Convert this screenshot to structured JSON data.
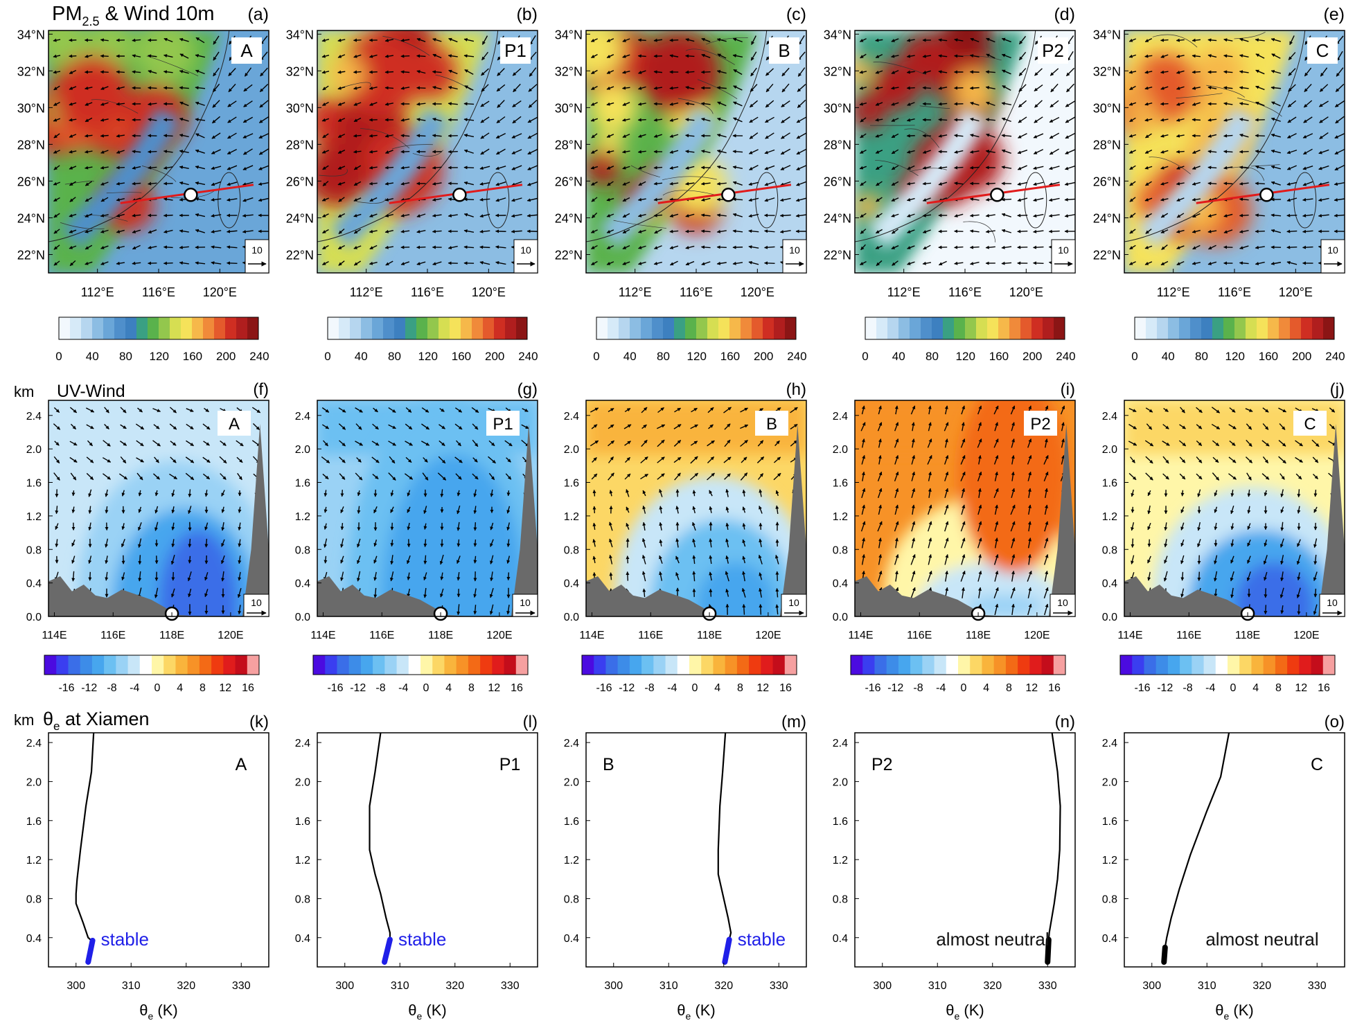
{
  "figure": {
    "row1_title": "PM",
    "row1_title_sub": "2.5",
    "row1_title_rest": " & Wind 10m",
    "row2_title": "UV-Wind",
    "row3_title_sym": "θ",
    "row3_title_sub": "e",
    "row3_title_rest": " at Xiamen",
    "km_label": "km"
  },
  "colors": {
    "pm_scale": [
      "#f2f8fd",
      "#d6eaf8",
      "#b6d6ef",
      "#8cbde3",
      "#6aa6d8",
      "#4f8fcb",
      "#3d80c0",
      "#3aa083",
      "#5ab24c",
      "#93c74d",
      "#d6de52",
      "#f5e25a",
      "#f6b84a",
      "#f08a3a",
      "#e45a2c",
      "#cf2e22",
      "#b01e1e",
      "#8b1515"
    ],
    "uv_scale": [
      "#4b0be0",
      "#3a3ef0",
      "#3a6ee8",
      "#3d8ce8",
      "#47a6ee",
      "#6cc0f2",
      "#9ad2f5",
      "#c8e6f8",
      "#ffffff",
      "#fff6a8",
      "#fcd765",
      "#f9b43c",
      "#f79227",
      "#f36a16",
      "#ef3b10",
      "#e01c1c",
      "#c40d1b",
      "#f6a0a0"
    ],
    "terrain": "#6a6a6a",
    "cross_section_line": "#e11b1b",
    "stable_marker": "#1f1fe8",
    "neutral_marker": "#000000"
  },
  "pm_colorbar_ticks": [
    "0",
    "40",
    "80",
    "120",
    "160",
    "200",
    "240"
  ],
  "uv_colorbar_ticks": [
    "-16",
    "-12",
    "-8",
    "-4",
    "0",
    "4",
    "8",
    "12",
    "16"
  ],
  "map_xticks": [
    "112°E",
    "116°E",
    "120°E"
  ],
  "map_yticks": [
    "34°N",
    "32°N",
    "30°N",
    "28°N",
    "26°N",
    "24°N",
    "22°N"
  ],
  "cs_xticks": [
    "114E",
    "116E",
    "118E",
    "120E"
  ],
  "cs_yticks": [
    "2.4",
    "2.0",
    "1.6",
    "1.2",
    "0.8",
    "0.4",
    "0.0"
  ],
  "theta_xticks": [
    "300",
    "310",
    "320",
    "330"
  ],
  "theta_yticks": [
    "2.4",
    "2.0",
    "1.6",
    "1.2",
    "0.8",
    "0.4"
  ],
  "theta_xlabel_sym": "θ",
  "theta_xlabel_sub": "e",
  "theta_xlabel_rest": " (K)",
  "ref_vector_label": "10",
  "stages": [
    {
      "stage": "A",
      "map_tag": "(a)",
      "cs_tag": "(f)",
      "theta_tag": "(k)",
      "note": "stable",
      "note_style": "stable"
    },
    {
      "stage": "P1",
      "map_tag": "(b)",
      "cs_tag": "(g)",
      "theta_tag": "(l)",
      "note": "stable",
      "note_style": "stable"
    },
    {
      "stage": "B",
      "map_tag": "(c)",
      "cs_tag": "(h)",
      "theta_tag": "(m)",
      "note": "stable",
      "note_style": "stable"
    },
    {
      "stage": "P2",
      "map_tag": "(d)",
      "cs_tag": "(i)",
      "theta_tag": "(n)",
      "note": "almost neutral",
      "note_style": "neutral"
    },
    {
      "stage": "C",
      "map_tag": "(e)",
      "cs_tag": "(j)",
      "theta_tag": "(o)",
      "note": "almost neutral",
      "note_style": "neutral"
    }
  ],
  "chart_data": [
    {
      "type": "line",
      "title": "θe at Xiamen",
      "xlabel": "θe (K)",
      "ylabel": "km",
      "xlim": [
        295,
        335
      ],
      "ylim": [
        0.1,
        2.5
      ],
      "series": [
        {
          "name": "A",
          "x": [
            303.2,
            302.8,
            301.8,
            300.8,
            300.2,
            300.0,
            300.0,
            301.3,
            302.2,
            302.8
          ],
          "y": [
            2.5,
            2.1,
            1.75,
            1.3,
            1.0,
            0.85,
            0.75,
            0.55,
            0.4,
            0.37
          ],
          "marked_x": [
            303.0,
            302.2
          ],
          "marked_y": [
            0.37,
            0.15
          ]
        },
        {
          "name": "P1",
          "x": [
            306.5,
            305.5,
            304.5,
            304.5,
            305.5,
            306.5,
            307.5,
            308.2,
            308.2
          ],
          "y": [
            2.5,
            2.1,
            1.75,
            1.3,
            1.05,
            0.85,
            0.6,
            0.45,
            0.38
          ],
          "marked_x": [
            308.2,
            307.2
          ],
          "marked_y": [
            0.38,
            0.15
          ]
        },
        {
          "name": "B",
          "x": [
            320.3,
            319.8,
            319.3,
            319.0,
            319.0,
            319.8,
            320.8,
            321.3,
            321.0
          ],
          "y": [
            2.5,
            2.1,
            1.75,
            1.3,
            1.05,
            0.85,
            0.6,
            0.45,
            0.38
          ],
          "marked_x": [
            321.0,
            320.2
          ],
          "marked_y": [
            0.38,
            0.15
          ]
        },
        {
          "name": "P2",
          "x": [
            330.8,
            331.8,
            332.3,
            332.2,
            331.8,
            331.2,
            330.6,
            330.3,
            330.2
          ],
          "y": [
            2.5,
            2.1,
            1.75,
            1.3,
            1.0,
            0.75,
            0.55,
            0.45,
            0.38
          ],
          "marked_x": [
            330.2,
            330.0
          ],
          "marked_y": [
            0.38,
            0.15
          ]
        },
        {
          "name": "C",
          "x": [
            314.0,
            312.5,
            310.0,
            307.0,
            305.0,
            303.5,
            302.7,
            302.4
          ],
          "y": [
            2.5,
            2.05,
            1.7,
            1.25,
            0.9,
            0.6,
            0.4,
            0.3
          ],
          "marked_x": [
            302.4,
            302.2
          ],
          "marked_y": [
            0.3,
            0.15
          ]
        }
      ]
    }
  ]
}
